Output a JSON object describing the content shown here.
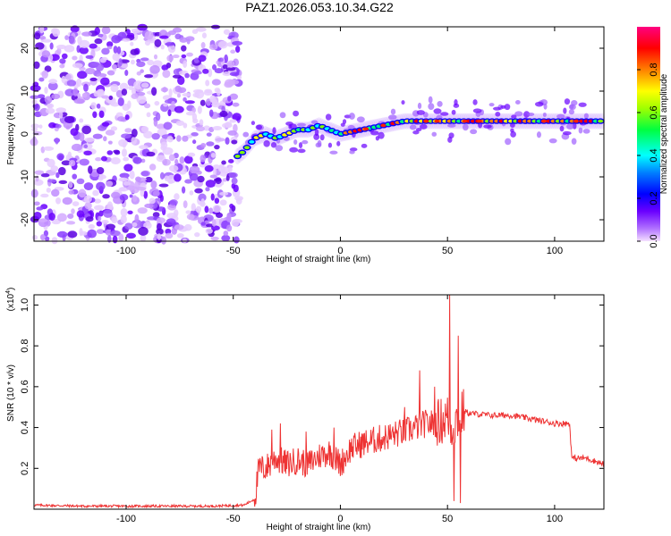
{
  "title": "PAZ1.2026.053.10.34.G22",
  "chart_data": [
    {
      "type": "heatmap",
      "name": "spectrogram",
      "xlabel": "Height of straight line (km)",
      "ylabel": "Frequency (Hz)",
      "xlim": [
        -143,
        123
      ],
      "ylim": [
        -25,
        25
      ],
      "xticks": [
        -100,
        -50,
        0,
        50,
        100
      ],
      "yticks": [
        -20,
        -10,
        0,
        10,
        20
      ],
      "noise_region_x": [
        -143,
        -47
      ],
      "ridge": {
        "description": "main frequency ridge vs height",
        "x": [
          -50,
          -45,
          -40,
          -35,
          -30,
          -25,
          -20,
          -15,
          -10,
          -5,
          0,
          10,
          20,
          30,
          40,
          50,
          60,
          80,
          100,
          123
        ],
        "freq_hz": [
          -6,
          -4,
          -1,
          0,
          -1,
          0,
          1,
          1,
          2,
          1,
          0,
          1,
          2,
          3,
          3,
          3,
          3,
          3,
          3,
          3
        ]
      },
      "colorbar": {
        "label": "Normalized spectral amplitude",
        "range": [
          0.0,
          1.0
        ],
        "ticks": [
          "0.0",
          "0.2",
          "0.4",
          "0.6",
          "0.8"
        ],
        "colors": [
          "#f0ccff",
          "#6a00ff",
          "#0000ff",
          "#00ffff",
          "#00ff00",
          "#ffff00",
          "#ff8000",
          "#ff0000",
          "#ff0080"
        ]
      }
    },
    {
      "type": "line",
      "name": "snr",
      "xlabel": "Height of straight line (km)",
      "ylabel": "SNR (10 * v/v)",
      "y_multiplier": "(x10",
      "y_multiplier_exp": "4",
      "y_multiplier_close": ")",
      "xlim": [
        -143,
        123
      ],
      "ylim": [
        0,
        1.05
      ],
      "xticks": [
        -100,
        -50,
        0,
        50,
        100
      ],
      "yticks": [
        0.2,
        0.4,
        0.6,
        0.8,
        1.0
      ],
      "color": "#ee3333",
      "x": [
        -143,
        -120,
        -100,
        -80,
        -60,
        -45,
        -40,
        -38,
        -35,
        -30,
        -25,
        -20,
        -15,
        -10,
        -5,
        0,
        5,
        10,
        20,
        30,
        40,
        45,
        50,
        52,
        55,
        58,
        60,
        70,
        80,
        90,
        100,
        107,
        108,
        115,
        123
      ],
      "values": [
        0.02,
        0.015,
        0.015,
        0.015,
        0.015,
        0.02,
        0.05,
        0.2,
        0.2,
        0.25,
        0.22,
        0.24,
        0.22,
        0.26,
        0.28,
        0.22,
        0.3,
        0.32,
        0.35,
        0.38,
        0.42,
        0.42,
        0.45,
        0.4,
        0.45,
        0.48,
        0.47,
        0.46,
        0.46,
        0.44,
        0.42,
        0.42,
        0.25,
        0.25,
        0.22
      ],
      "spikes": [
        {
          "x": -32,
          "y": 0.39
        },
        {
          "x": -28,
          "y": 0.42
        },
        {
          "x": -16,
          "y": 0.38
        },
        {
          "x": -3,
          "y": 0.4
        },
        {
          "x": 30,
          "y": 0.5
        },
        {
          "x": 37,
          "y": 0.68
        },
        {
          "x": 44,
          "y": 0.6
        },
        {
          "x": 51,
          "y": 1.05
        },
        {
          "x": 53,
          "y": 0.04
        },
        {
          "x": 55,
          "y": 0.85
        },
        {
          "x": 56,
          "y": 0.03
        }
      ]
    }
  ]
}
